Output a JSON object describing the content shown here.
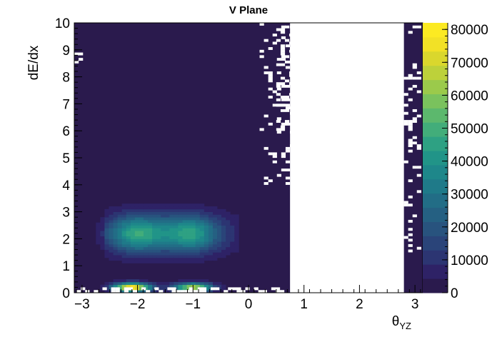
{
  "chart_data": {
    "type": "heatmap",
    "title": "V Plane",
    "xlabel": "θ",
    "xlabel_sub": "YZ",
    "ylabel": "dE/dx",
    "xlim": [
      -3.14,
      3.14
    ],
    "ylim": [
      0,
      10
    ],
    "x_ticks": [
      -3,
      -2,
      -1,
      0,
      1,
      2,
      3
    ],
    "x_tick_labels": [
      "−3",
      "−2",
      "−1",
      "0",
      "1",
      "2",
      "3"
    ],
    "y_ticks": [
      0,
      1,
      2,
      3,
      4,
      5,
      6,
      7,
      8,
      9,
      10
    ],
    "y_tick_labels": [
      "0",
      "1",
      "2",
      "3",
      "4",
      "5",
      "6",
      "7",
      "8",
      "9",
      "10"
    ],
    "zlim": [
      0,
      82000
    ],
    "z_ticks": [
      0,
      10000,
      20000,
      30000,
      40000,
      50000,
      60000,
      70000,
      80000
    ],
    "z_tick_labels": [
      "0",
      "10000",
      "20000",
      "30000",
      "40000",
      "50000",
      "60000",
      "70000",
      "80000"
    ],
    "colormap": "viridis",
    "colorbar_colors": [
      "#2a1a4d",
      "#2e2266",
      "#2c3572",
      "#2a4479",
      "#28537e",
      "#256082",
      "#226d86",
      "#1f7a89",
      "#1e878a",
      "#219488",
      "#2ea183",
      "#42ad7a",
      "#5cb86d",
      "#7ac25d",
      "#9bca4b",
      "#bdd13a",
      "#dad72d",
      "#f2e126",
      "#fcea22"
    ],
    "grid": false,
    "empty_band_x": [
      0.75,
      2.8
    ],
    "hotspots": [
      {
        "x": -2.1,
        "y": 0.2,
        "value": 82000
      },
      {
        "x": -1.0,
        "y": 0.2,
        "value": 68000
      },
      {
        "x": -2.0,
        "y": 2.2,
        "value": 42000
      },
      {
        "x": -1.05,
        "y": 2.2,
        "value": 40000
      }
    ]
  }
}
